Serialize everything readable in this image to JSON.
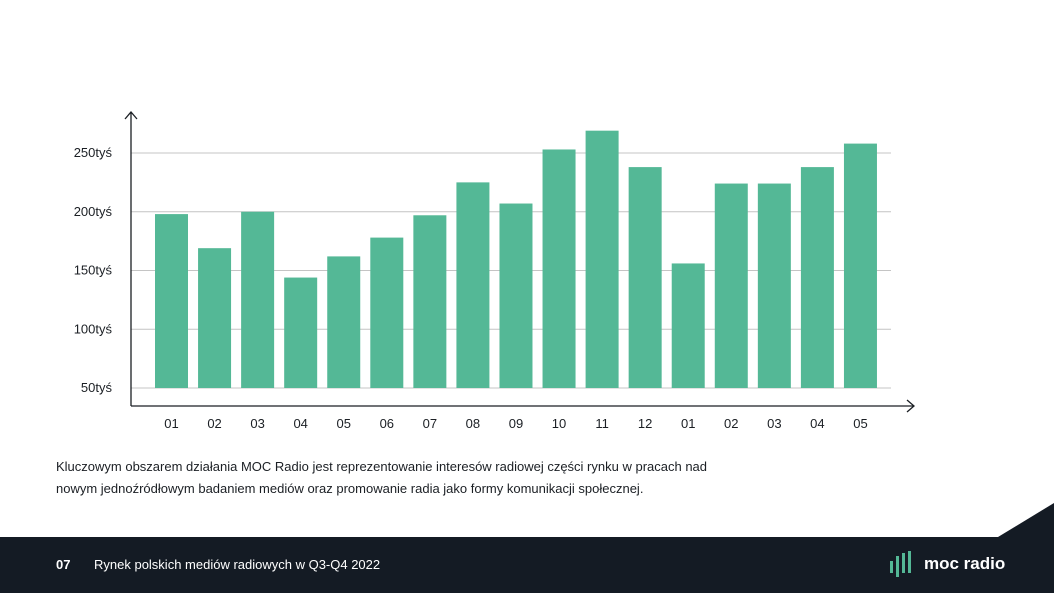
{
  "chart_data": {
    "type": "bar",
    "title": "",
    "xlabel": "",
    "ylabel": "",
    "categories": [
      "01",
      "02",
      "03",
      "04",
      "05",
      "06",
      "07",
      "08",
      "09",
      "10",
      "11",
      "12",
      "01",
      "02",
      "03",
      "04",
      "05"
    ],
    "values": [
      198,
      169,
      200,
      144,
      162,
      178,
      197,
      225,
      207,
      253,
      269,
      238,
      156,
      224,
      224,
      238,
      258
    ],
    "unit": "tyś",
    "yticks": [
      50,
      100,
      150,
      200,
      250
    ],
    "ytick_labels": [
      "50tyś",
      "100tyś",
      "150tyś",
      "200tyś",
      "250tyś"
    ],
    "ylim": [
      50,
      280
    ],
    "grid": true,
    "bar_color": "#54b896"
  },
  "description": "Kluczowym obszarem działania MOC Radio jest reprezentowanie interesów radiowej części rynku w pracach nad nowym jednoźródłowym badaniem mediów oraz promowanie radia jako formy komunikacji społecznej.",
  "footer": {
    "page_number": "07",
    "title": "Rynek polskich mediów radiowych w Q3-Q4 2022",
    "logo_text": "moc radio"
  },
  "colors": {
    "accent": "#54b896",
    "footer_bg": "#141b24"
  }
}
